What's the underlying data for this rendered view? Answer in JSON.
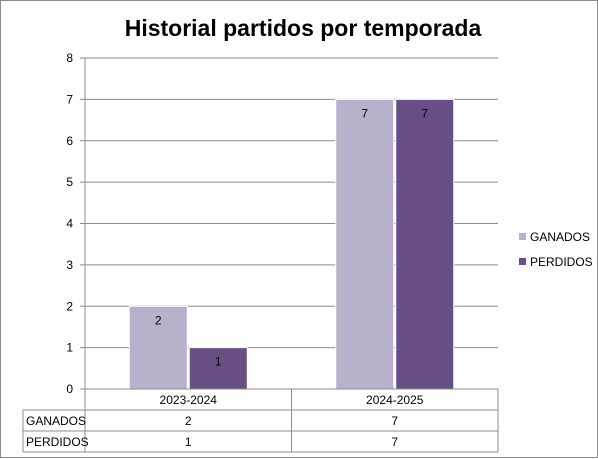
{
  "chart_data": {
    "type": "bar",
    "title": "Historial partidos por temporada",
    "categories": [
      "2023-2024",
      "2024-2025"
    ],
    "series": [
      {
        "name": "GANADOS",
        "values": [
          2,
          7
        ],
        "color": "#b9b0cb"
      },
      {
        "name": "PERDIDOS",
        "values": [
          1,
          7
        ],
        "color": "#674f86"
      }
    ],
    "ylim": [
      0,
      8
    ],
    "yticks": [
      0,
      1,
      2,
      3,
      4,
      5,
      6,
      7,
      8
    ],
    "grid": true,
    "legend_position": "right",
    "data_table": true,
    "data_labels": true
  }
}
